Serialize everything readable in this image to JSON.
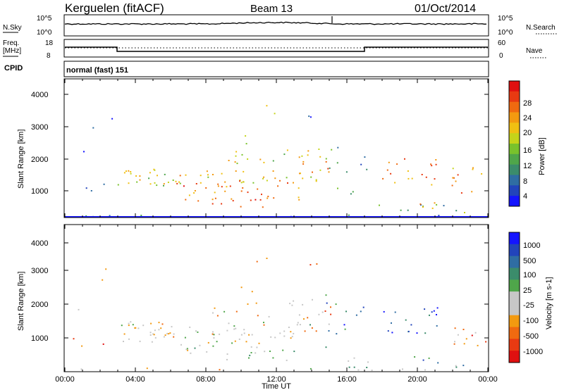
{
  "header": {
    "station": "Kerguelen (fitACF)",
    "beam": "Beam 13",
    "date": "01/Oct/2014"
  },
  "noise_panel": {
    "left_label": "N.Sky",
    "right_label": "N.Search",
    "left_ticks": [
      "10^5",
      "10^0"
    ],
    "right_ticks": [
      "10^5",
      "10^0"
    ]
  },
  "freq_panel": {
    "left_label_1": "Freq.",
    "left_label_2": "[MHz]",
    "right_label": "Nave",
    "left_ticks": [
      "18",
      "8"
    ],
    "right_ticks": [
      "60",
      "0"
    ]
  },
  "cpid": {
    "label": "CPID",
    "value": "normal (fast) 151"
  },
  "colors": {
    "power": [
      "#1414ff",
      "#2244bb",
      "#2f6da3",
      "#3b8c6b",
      "#4fa64a",
      "#79c22c",
      "#c5d41a",
      "#f0c012",
      "#f39a10",
      "#f06a10",
      "#e83a12",
      "#e01010"
    ],
    "velocity": [
      "#e01010",
      "#e83a12",
      "#f06a10",
      "#f39a10",
      "#c7c7c7",
      "#c7c7c7",
      "#4fa64a",
      "#3b8c6b",
      "#2f6da3",
      "#2244bb",
      "#1414ff"
    ]
  },
  "chart_data": [
    {
      "type": "heatmap",
      "panel": "power",
      "ylabel": "Slant Range [km]",
      "ylim": [
        180,
        4500
      ],
      "y_ticks": [
        "1000",
        "2000",
        "3000",
        "4000"
      ],
      "x_range_hours": [
        0,
        24
      ],
      "colorbar_label": "Power [dB]",
      "colorbar_ticks": [
        "4",
        "8",
        "12",
        "16",
        "20",
        "24",
        "28"
      ],
      "colorbar_range": [
        0,
        30
      ]
    },
    {
      "type": "heatmap",
      "panel": "velocity",
      "ylabel": "Slant Range [km]",
      "ylim": [
        180,
        4500
      ],
      "y_ticks": [
        "1000",
        "2000",
        "3000",
        "4000"
      ],
      "x_range_hours": [
        0,
        24
      ],
      "colorbar_label": "Velocity [m s-1]",
      "colorbar_ticks": [
        "1000",
        "500",
        "100",
        "25",
        "-25",
        "-100",
        "-500",
        "-1000"
      ]
    }
  ],
  "x_axis": {
    "label": "Time UT",
    "ticks": [
      "00:00",
      "04:00",
      "08:00",
      "12:00",
      "16:00",
      "20:00",
      "00:00"
    ]
  }
}
